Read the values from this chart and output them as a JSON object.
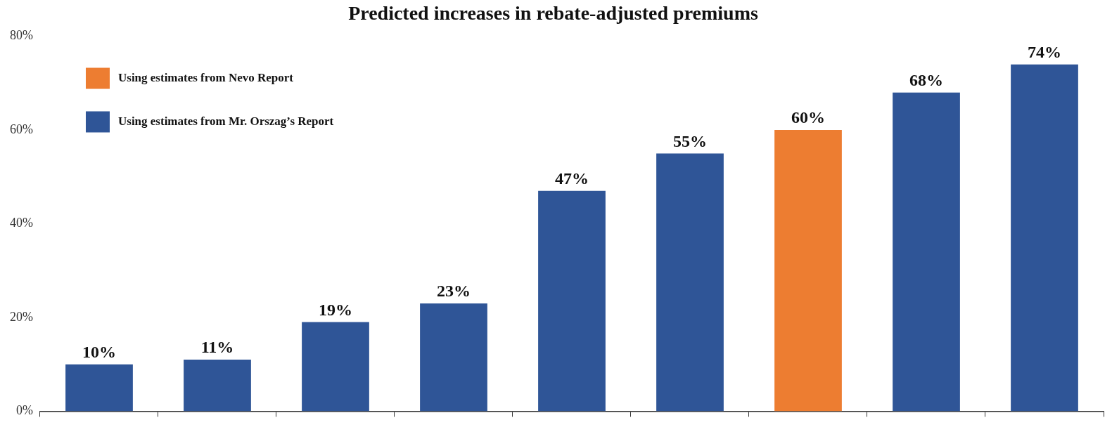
{
  "chart_data": {
    "type": "bar",
    "title": "Predicted increases in rebate-adjusted premiums",
    "categories": [
      null,
      null,
      null,
      null,
      null,
      null,
      null,
      null,
      null
    ],
    "series": [
      {
        "name": "Using estimates from Nevo Report",
        "color": "#ed7d31",
        "values": [
          null,
          null,
          null,
          null,
          null,
          null,
          60,
          null,
          null
        ],
        "value_labels": [
          null,
          null,
          null,
          null,
          null,
          null,
          "60%",
          null,
          null
        ]
      },
      {
        "name": "Using estimates from Mr. Orszag’s Report",
        "color": "#2f5597",
        "values": [
          10,
          11,
          19,
          23,
          47,
          55,
          null,
          68,
          74
        ],
        "value_labels": [
          "10%",
          "11%",
          "19%",
          "23%",
          "47%",
          "55%",
          null,
          "68%",
          "74%"
        ]
      }
    ],
    "ylim": [
      0,
      80
    ],
    "yticks": [
      {
        "value": 0,
        "label": "0%"
      },
      {
        "value": 20,
        "label": "20%"
      },
      {
        "value": 40,
        "label": "40%"
      },
      {
        "value": 60,
        "label": "60%"
      },
      {
        "value": 80,
        "label": "80%"
      }
    ],
    "grid": false,
    "legend": "top left"
  }
}
